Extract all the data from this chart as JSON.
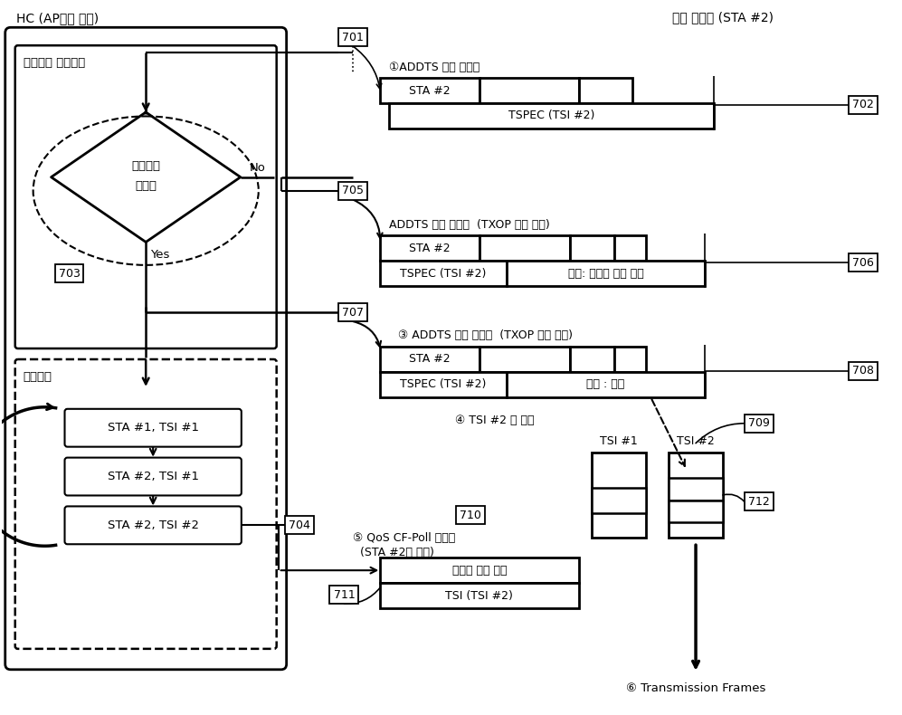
{
  "bg_color": "#ffffff",
  "fig_width": 9.97,
  "fig_height": 7.9,
  "labels": {
    "hc_title": "HC (AP내에 위치)",
    "admission_ctrl": "어드미션 컨트롤러",
    "scheduler": "스케줄러",
    "wireless": "무선 단말기 (STA #2)",
    "diamond_line1": "어드미션",
    "diamond_line2": "테스트",
    "no_label": "No",
    "yes_label": "Yes",
    "n701": "701",
    "n702": "702",
    "n703": "703",
    "n704": "704",
    "n705": "705",
    "n706": "706",
    "n707": "707",
    "n708": "708",
    "n709": "709",
    "n710": "710",
    "n711": "711",
    "n712": "712",
    "lbl_req": "①ADDTS 요청 프레임",
    "lbl_fail_title": "ADDTS 응답 프레임  (TXOP 할당 실패)",
    "lbl_success_title": "③ ADDTS 응답 프레임  (TXOP 할당 성공)",
    "lbl_tsi_create": "④ TSI #2 큐 생성",
    "lbl_poll": "⑤ QoS CF-Poll 프레임",
    "lbl_poll2": "  (STA #2를 폴링)",
    "lbl_tx": "⑥ Transmission Frames",
    "sta2": "STA #2",
    "tspec2": "TSPEC (TSI #2)",
    "fail_status": "상태: 부적합 혹은 반려",
    "success_status": "상태 : 성공",
    "frame_ctrl": "프레임 제어 필드",
    "tsi_field": "TSI (TSI #2)",
    "sched1": "STA #1, TSI #1",
    "sched2": "STA #2, TSI #1",
    "sched3": "STA #2, TSI #2",
    "tsi1": "TSI #1",
    "tsi2": "TSI #2"
  }
}
